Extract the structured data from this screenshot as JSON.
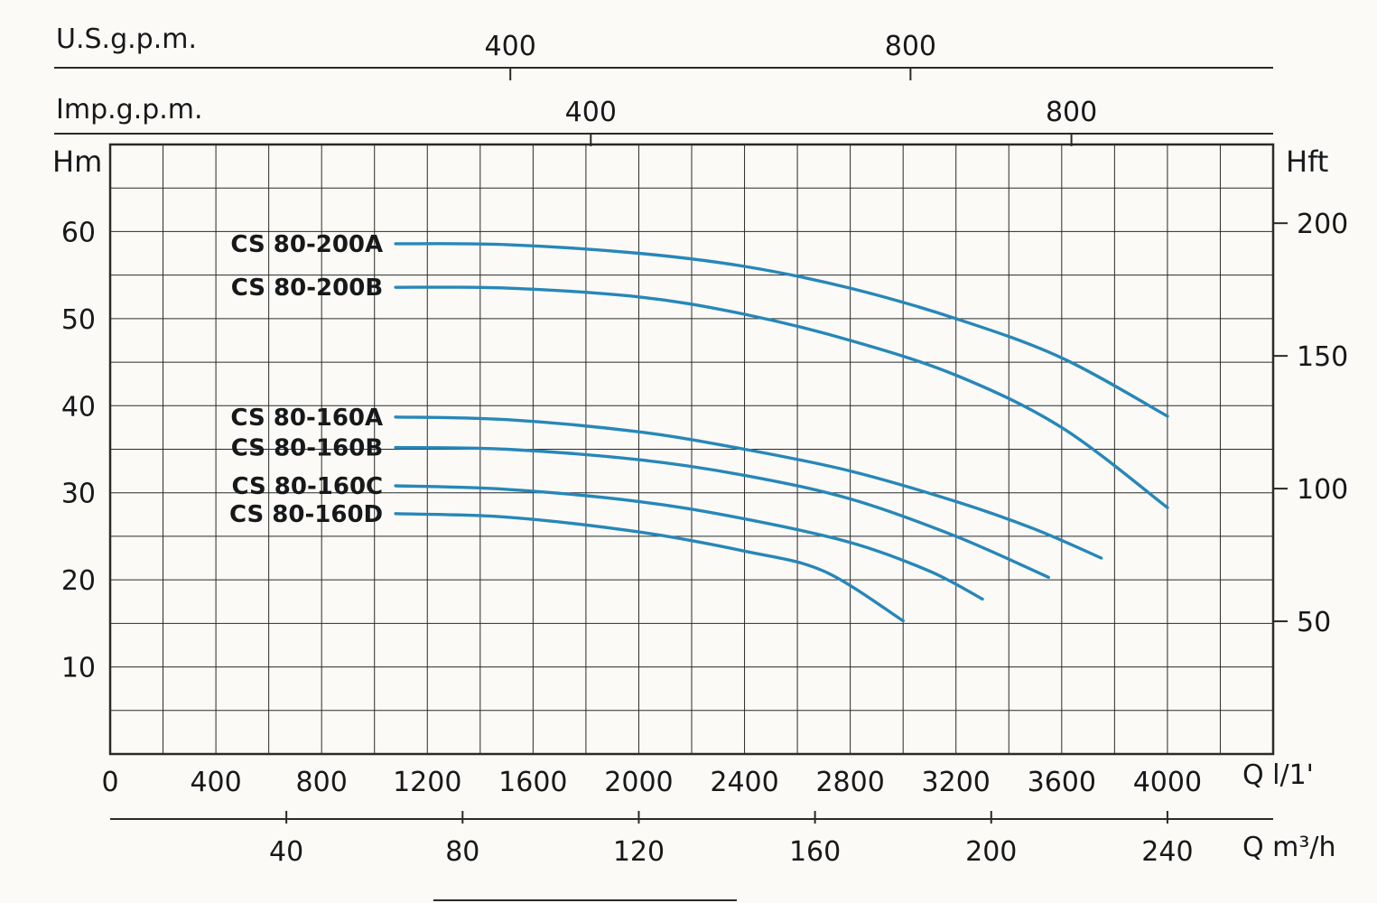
{
  "page": {
    "background": "#fbfaf7"
  },
  "chart_data": {
    "type": "line",
    "title": "",
    "axes": {
      "top_us": {
        "label": "U.S.g.p.m.",
        "ticks": [
          400,
          800
        ],
        "l_per_min_per_unit": 3.785
      },
      "top_imp": {
        "label": "Imp.g.p.m.",
        "ticks": [
          400,
          800
        ],
        "l_per_min_per_unit": 4.546
      },
      "x_main": {
        "label": "Q l/1'",
        "ticks": [
          0,
          400,
          800,
          1200,
          1600,
          2000,
          2400,
          2800,
          3200,
          3600,
          4000
        ],
        "range": [
          0,
          4400
        ],
        "grid_step": 200
      },
      "x_secondary": {
        "label": "Q m³/h",
        "ticks": [
          40,
          80,
          120,
          160,
          200,
          240
        ],
        "l_per_min_per_unit": 16.6667
      },
      "y_left": {
        "label": "Hm",
        "ticks": [
          10,
          20,
          30,
          40,
          50,
          60
        ],
        "range": [
          0,
          70
        ],
        "grid_step": 5
      },
      "y_right": {
        "label": "Hft",
        "ticks": [
          50,
          100,
          150,
          200
        ],
        "m_per_unit": 0.3048
      }
    },
    "series": [
      {
        "name": "CS 80-200A",
        "points": [
          [
            1080,
            58.6
          ],
          [
            1500,
            58.5
          ],
          [
            2000,
            57.5
          ],
          [
            2400,
            56.0
          ],
          [
            2800,
            53.5
          ],
          [
            3200,
            50.0
          ],
          [
            3600,
            45.5
          ],
          [
            4000,
            38.8
          ]
        ]
      },
      {
        "name": "CS 80-200B",
        "points": [
          [
            1080,
            53.6
          ],
          [
            1500,
            53.5
          ],
          [
            2000,
            52.5
          ],
          [
            2400,
            50.5
          ],
          [
            2800,
            47.5
          ],
          [
            3200,
            43.5
          ],
          [
            3600,
            37.5
          ],
          [
            4000,
            28.3
          ]
        ]
      },
      {
        "name": "CS 80-160A",
        "points": [
          [
            1080,
            38.7
          ],
          [
            1500,
            38.4
          ],
          [
            2000,
            37.0
          ],
          [
            2400,
            35.0
          ],
          [
            2800,
            32.5
          ],
          [
            3200,
            29.0
          ],
          [
            3500,
            25.8
          ],
          [
            3750,
            22.5
          ]
        ]
      },
      {
        "name": "CS 80-160B",
        "points": [
          [
            1080,
            35.2
          ],
          [
            1500,
            35.0
          ],
          [
            2000,
            33.8
          ],
          [
            2400,
            32.0
          ],
          [
            2800,
            29.3
          ],
          [
            3200,
            25.0
          ],
          [
            3550,
            20.3
          ]
        ]
      },
      {
        "name": "CS 80-160C",
        "points": [
          [
            1080,
            30.8
          ],
          [
            1500,
            30.4
          ],
          [
            2000,
            29.0
          ],
          [
            2400,
            27.0
          ],
          [
            2800,
            24.3
          ],
          [
            3100,
            21.0
          ],
          [
            3300,
            17.8
          ]
        ]
      },
      {
        "name": "CS 80-160D",
        "points": [
          [
            1080,
            27.6
          ],
          [
            1500,
            27.2
          ],
          [
            2000,
            25.5
          ],
          [
            2400,
            23.3
          ],
          [
            2700,
            21.0
          ],
          [
            3000,
            15.3
          ]
        ]
      }
    ],
    "style": {
      "curve_color": "#2787b8",
      "grid_color": "#2a2a28",
      "text_color": "#17181a",
      "background": "#fbfaf7"
    },
    "layout_hints": {
      "grid": true,
      "legend": "inline-labels-left-of-curves"
    }
  }
}
